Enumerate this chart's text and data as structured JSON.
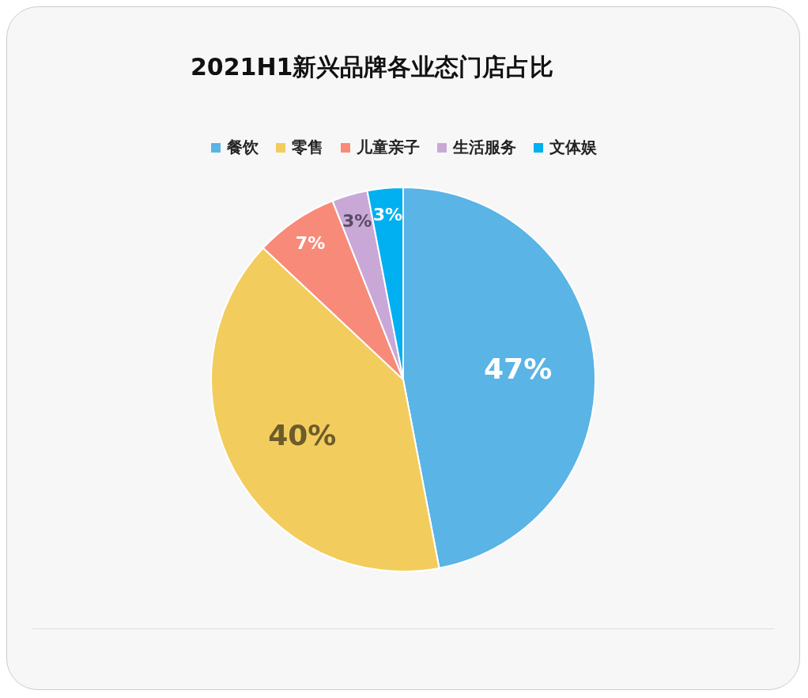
{
  "chart_data": {
    "type": "pie",
    "title": "2021H1新兴品牌各业态门店占比",
    "categories": [
      "餐饮",
      "零售",
      "儿童亲子",
      "生活服务",
      "文体娱"
    ],
    "values": [
      47,
      40,
      7,
      3,
      3
    ],
    "colors": [
      "#5ab4e5",
      "#f2cd5d",
      "#f88a7a",
      "#c9a8d8",
      "#00b0f0"
    ],
    "value_labels": [
      "47%",
      "40%",
      "7%",
      "3%",
      "3%"
    ],
    "legend": "top"
  }
}
